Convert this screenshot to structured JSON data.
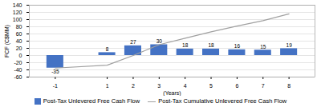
{
  "chart_data": {
    "type": "bar",
    "x": [
      -1,
      1,
      2,
      3,
      4,
      5,
      6,
      7,
      8
    ],
    "xlabel": "(Years)",
    "ylabel": "FCF (C$MM)",
    "xlim": [
      -2,
      9
    ],
    "xticks": [
      -1,
      1,
      2,
      3,
      4,
      5,
      6,
      7,
      8
    ],
    "ylim": [
      -60,
      140
    ],
    "yticks": [
      -60,
      -40,
      -20,
      0,
      20,
      40,
      60,
      80,
      100,
      120,
      140
    ],
    "grid": true,
    "legend": "bottom",
    "series": [
      {
        "name": "Post-Tax Unlevered Free Cash Flow",
        "type": "bar",
        "color": "#4472c4",
        "data_labels": true,
        "values": [
          -35,
          8,
          27,
          30,
          18,
          18,
          16,
          15,
          19
        ]
      },
      {
        "name": "Post-Tax Cumulative Unlevered Free Cash Flow",
        "type": "line",
        "color": "#a0a0a0",
        "values": [
          -35,
          -27,
          0,
          30,
          48,
          66,
          82,
          97,
          116
        ]
      }
    ]
  }
}
